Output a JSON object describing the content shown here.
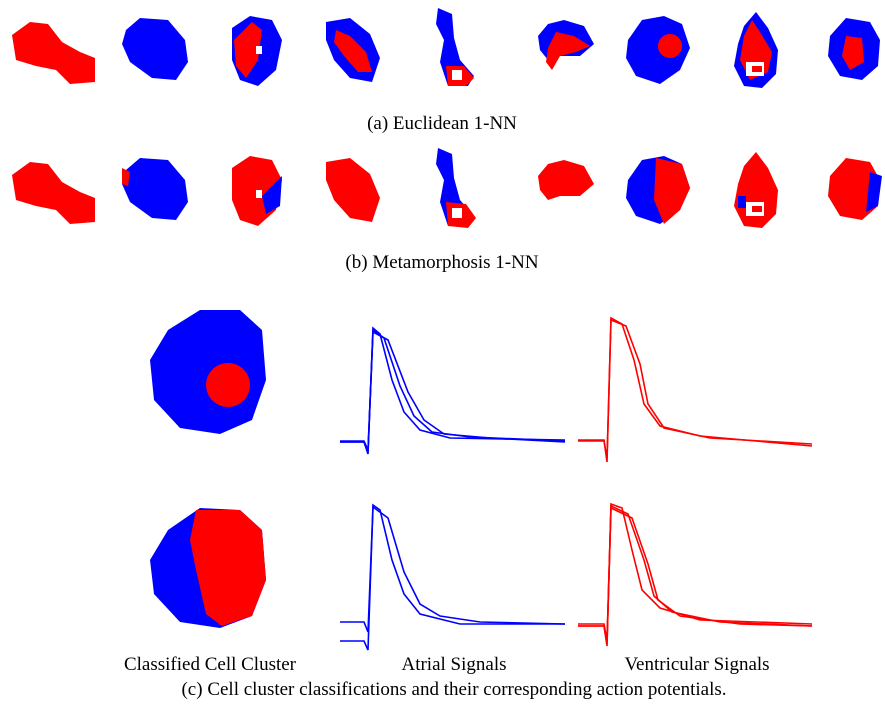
{
  "captions": {
    "a": "(a) Euclidean 1-NN",
    "b": "(b) Metamorphosis 1-NN",
    "c": "(c) Cell cluster classifications and their corresponding action potentials."
  },
  "column_labels": [
    "Classified Cell Cluster",
    "Atrial Signals",
    "Ventricular Signals"
  ]
}
